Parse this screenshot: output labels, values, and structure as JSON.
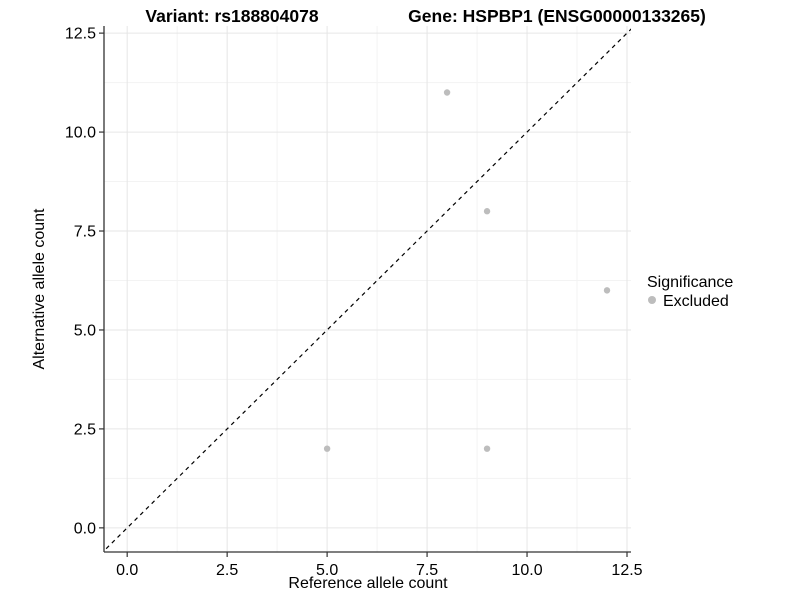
{
  "header": {
    "title_left": "Variant: rs188804078",
    "title_right": "Gene: HSPBP1 (ENSG00000133265)"
  },
  "legend": {
    "title": "Significance",
    "items": [
      {
        "label": "Excluded",
        "color": "#bdbdbd",
        "marker": "circle"
      }
    ],
    "position": "right"
  },
  "colors": {
    "background": "#ffffff",
    "point": "#bdbdbd",
    "axis_line": "#333333",
    "major_grid": "#e6e6e6",
    "minor_grid": "#f3f3f3",
    "identity_line": "#000000",
    "text": "#000000"
  },
  "chart_data": {
    "type": "scatter",
    "title": "Variant: rs188804078   Gene: HSPBP1 (ENSG00000133265)",
    "xlabel": "Reference allele count",
    "ylabel": "Alternative allele count",
    "xlim": [
      -0.58,
      12.6
    ],
    "ylim": [
      -0.61,
      12.68
    ],
    "x_tick_values": [
      0,
      2.5,
      5,
      7.5,
      10,
      12.5
    ],
    "x_tick_labels": [
      "0.0",
      "2.5",
      "5.0",
      "7.5",
      "10.0",
      "12.5"
    ],
    "y_tick_values": [
      0,
      2.5,
      5,
      7.5,
      10,
      12.5
    ],
    "y_tick_labels": [
      "0.0",
      "2.5",
      "5.0",
      "7.5",
      "10.0",
      "12.5"
    ],
    "minor_tick_values": [
      1.25,
      3.75,
      6.25,
      8.75,
      11.25
    ],
    "grid": "major_and_minor",
    "series": [
      {
        "name": "Excluded",
        "color": "#bdbdbd",
        "points": [
          {
            "x": 8,
            "y": 11
          },
          {
            "x": 9,
            "y": 8
          },
          {
            "x": 12,
            "y": 6
          },
          {
            "x": 5,
            "y": 2
          },
          {
            "x": 9,
            "y": 2
          }
        ]
      }
    ],
    "reference_line": {
      "type": "identity",
      "slope": 1,
      "intercept": 0,
      "style": "dashed",
      "color": "#000000"
    },
    "legend_position": "right"
  }
}
